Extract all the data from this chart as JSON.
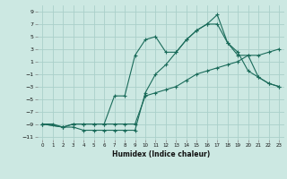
{
  "xlabel": "Humidex (Indice chaleur)",
  "background_color": "#cce8e2",
  "grid_color": "#aad0ca",
  "line_color": "#1a6b5a",
  "xlim": [
    -0.5,
    23.5
  ],
  "ylim": [
    -11.5,
    10.0
  ],
  "xticks": [
    0,
    1,
    2,
    3,
    4,
    5,
    6,
    7,
    8,
    9,
    10,
    11,
    12,
    13,
    14,
    15,
    16,
    17,
    18,
    19,
    20,
    21,
    22,
    23
  ],
  "yticks": [
    -11,
    -9,
    -7,
    -5,
    -3,
    -1,
    1,
    3,
    5,
    7,
    9
  ],
  "line1_x": [
    0,
    1,
    2,
    3,
    4,
    5,
    6,
    7,
    8,
    9,
    10,
    11,
    12,
    13,
    14,
    15,
    16,
    17,
    18,
    19,
    20,
    21,
    22,
    23
  ],
  "line1_y": [
    -9,
    -9,
    -9.5,
    -9,
    -9,
    -9,
    -9,
    -9,
    -9,
    -9,
    -4.5,
    -4,
    -3.5,
    -3,
    -2,
    -1,
    -0.5,
    0,
    0.5,
    1,
    2,
    2,
    2.5,
    3
  ],
  "line2_x": [
    0,
    2,
    3,
    4,
    5,
    6,
    7,
    8,
    9,
    10,
    11,
    12,
    13,
    14,
    15,
    16,
    17,
    18,
    19,
    20,
    21,
    22,
    23
  ],
  "line2_y": [
    -9,
    -9.5,
    -9,
    -9,
    -9,
    -9,
    -4.5,
    -4.5,
    2,
    4.5,
    5,
    2.5,
    2.5,
    4.5,
    6,
    7,
    7,
    4,
    2,
    2,
    -1.5,
    -2.5,
    -3
  ],
  "line3_x": [
    0,
    2,
    3,
    4,
    5,
    6,
    7,
    8,
    9,
    10,
    11,
    12,
    13,
    14,
    15,
    16,
    17,
    18,
    19,
    20,
    21,
    22,
    23
  ],
  "line3_y": [
    -9,
    -9.5,
    -9.5,
    -10,
    -10,
    -10,
    -10,
    -10,
    -10,
    -4,
    -1,
    0.5,
    2.5,
    4.5,
    6,
    7,
    8.5,
    4,
    2.5,
    -0.5,
    -1.5,
    -2.5,
    -3
  ]
}
